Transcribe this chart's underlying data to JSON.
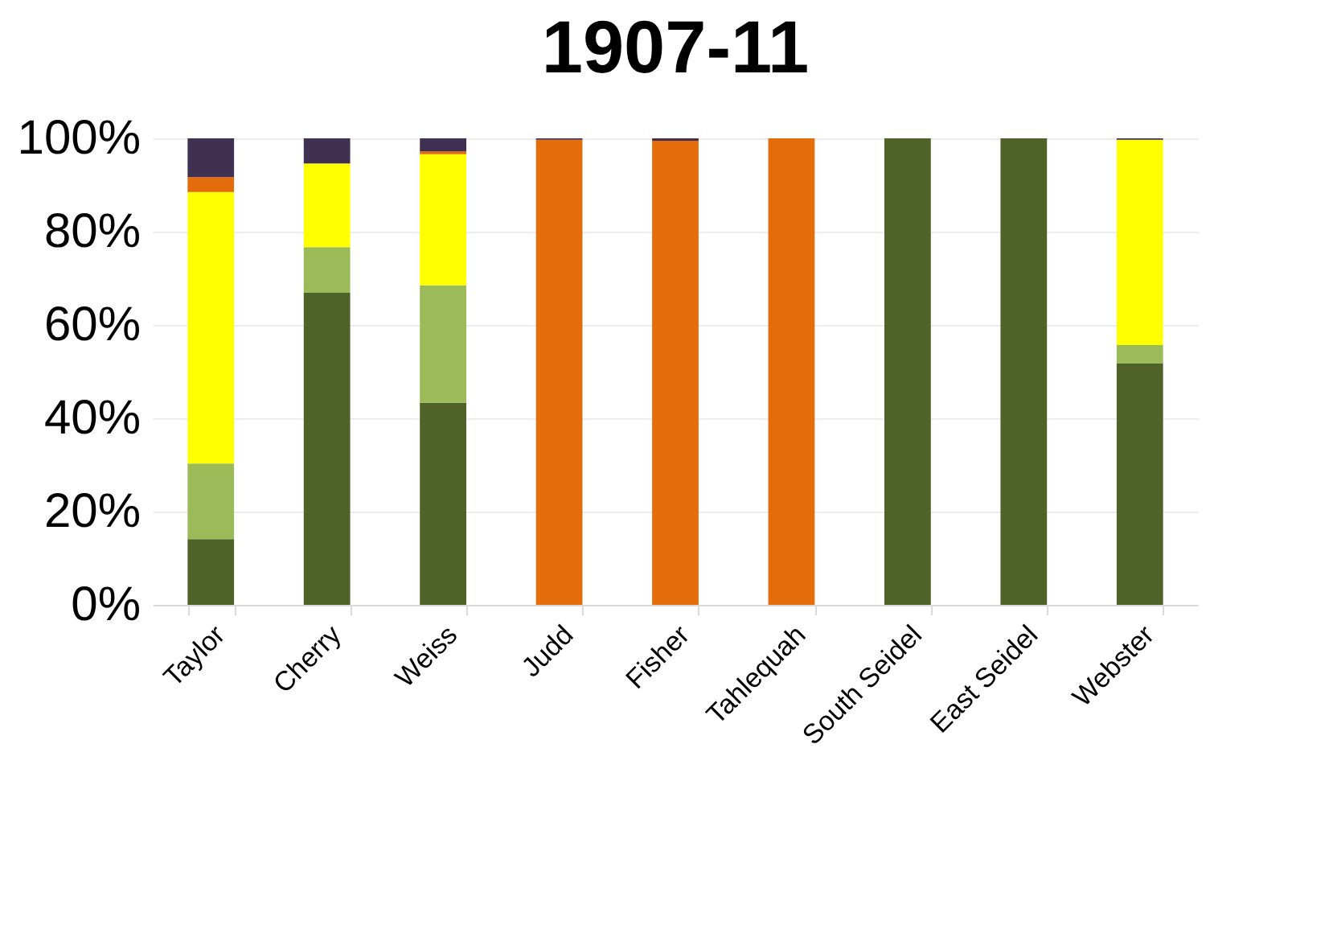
{
  "chart_data": {
    "type": "bar",
    "title": "1907-11",
    "stacked": true,
    "categories": [
      "Taylor",
      "Cherry",
      "Weiss",
      "Judd",
      "Fisher",
      "Tahlequah",
      "South Seidel",
      "East Seidel",
      "Webster"
    ],
    "series": [
      {
        "color": "#4f6228",
        "values": [
          14.1,
          66.9,
          43.3,
          0,
          0,
          0,
          100,
          100,
          51.8
        ]
      },
      {
        "color": "#9bbb59",
        "values": [
          16.2,
          9.8,
          25.2,
          0,
          0,
          0,
          0,
          0,
          3.9
        ]
      },
      {
        "color": "#ffff00",
        "values": [
          58.2,
          17.9,
          28.1,
          0,
          0,
          0,
          0,
          0,
          44.0
        ]
      },
      {
        "color": "#e46c0a",
        "values": [
          3.2,
          0,
          0.6,
          99.7,
          99.5,
          100,
          0,
          0,
          0
        ]
      },
      {
        "color": "#403152",
        "values": [
          8.3,
          5.4,
          2.8,
          0.3,
          0.5,
          0,
          0,
          0,
          0.3
        ]
      }
    ],
    "ylim": [
      0,
      100
    ],
    "yticks": [
      {
        "value": 0,
        "label": "0%"
      },
      {
        "value": 20,
        "label": "20%"
      },
      {
        "value": 40,
        "label": "40%"
      },
      {
        "value": 60,
        "label": "60%"
      },
      {
        "value": 80,
        "label": "80%"
      },
      {
        "value": 100,
        "label": "100%"
      }
    ],
    "grid": "y",
    "legend": false
  }
}
